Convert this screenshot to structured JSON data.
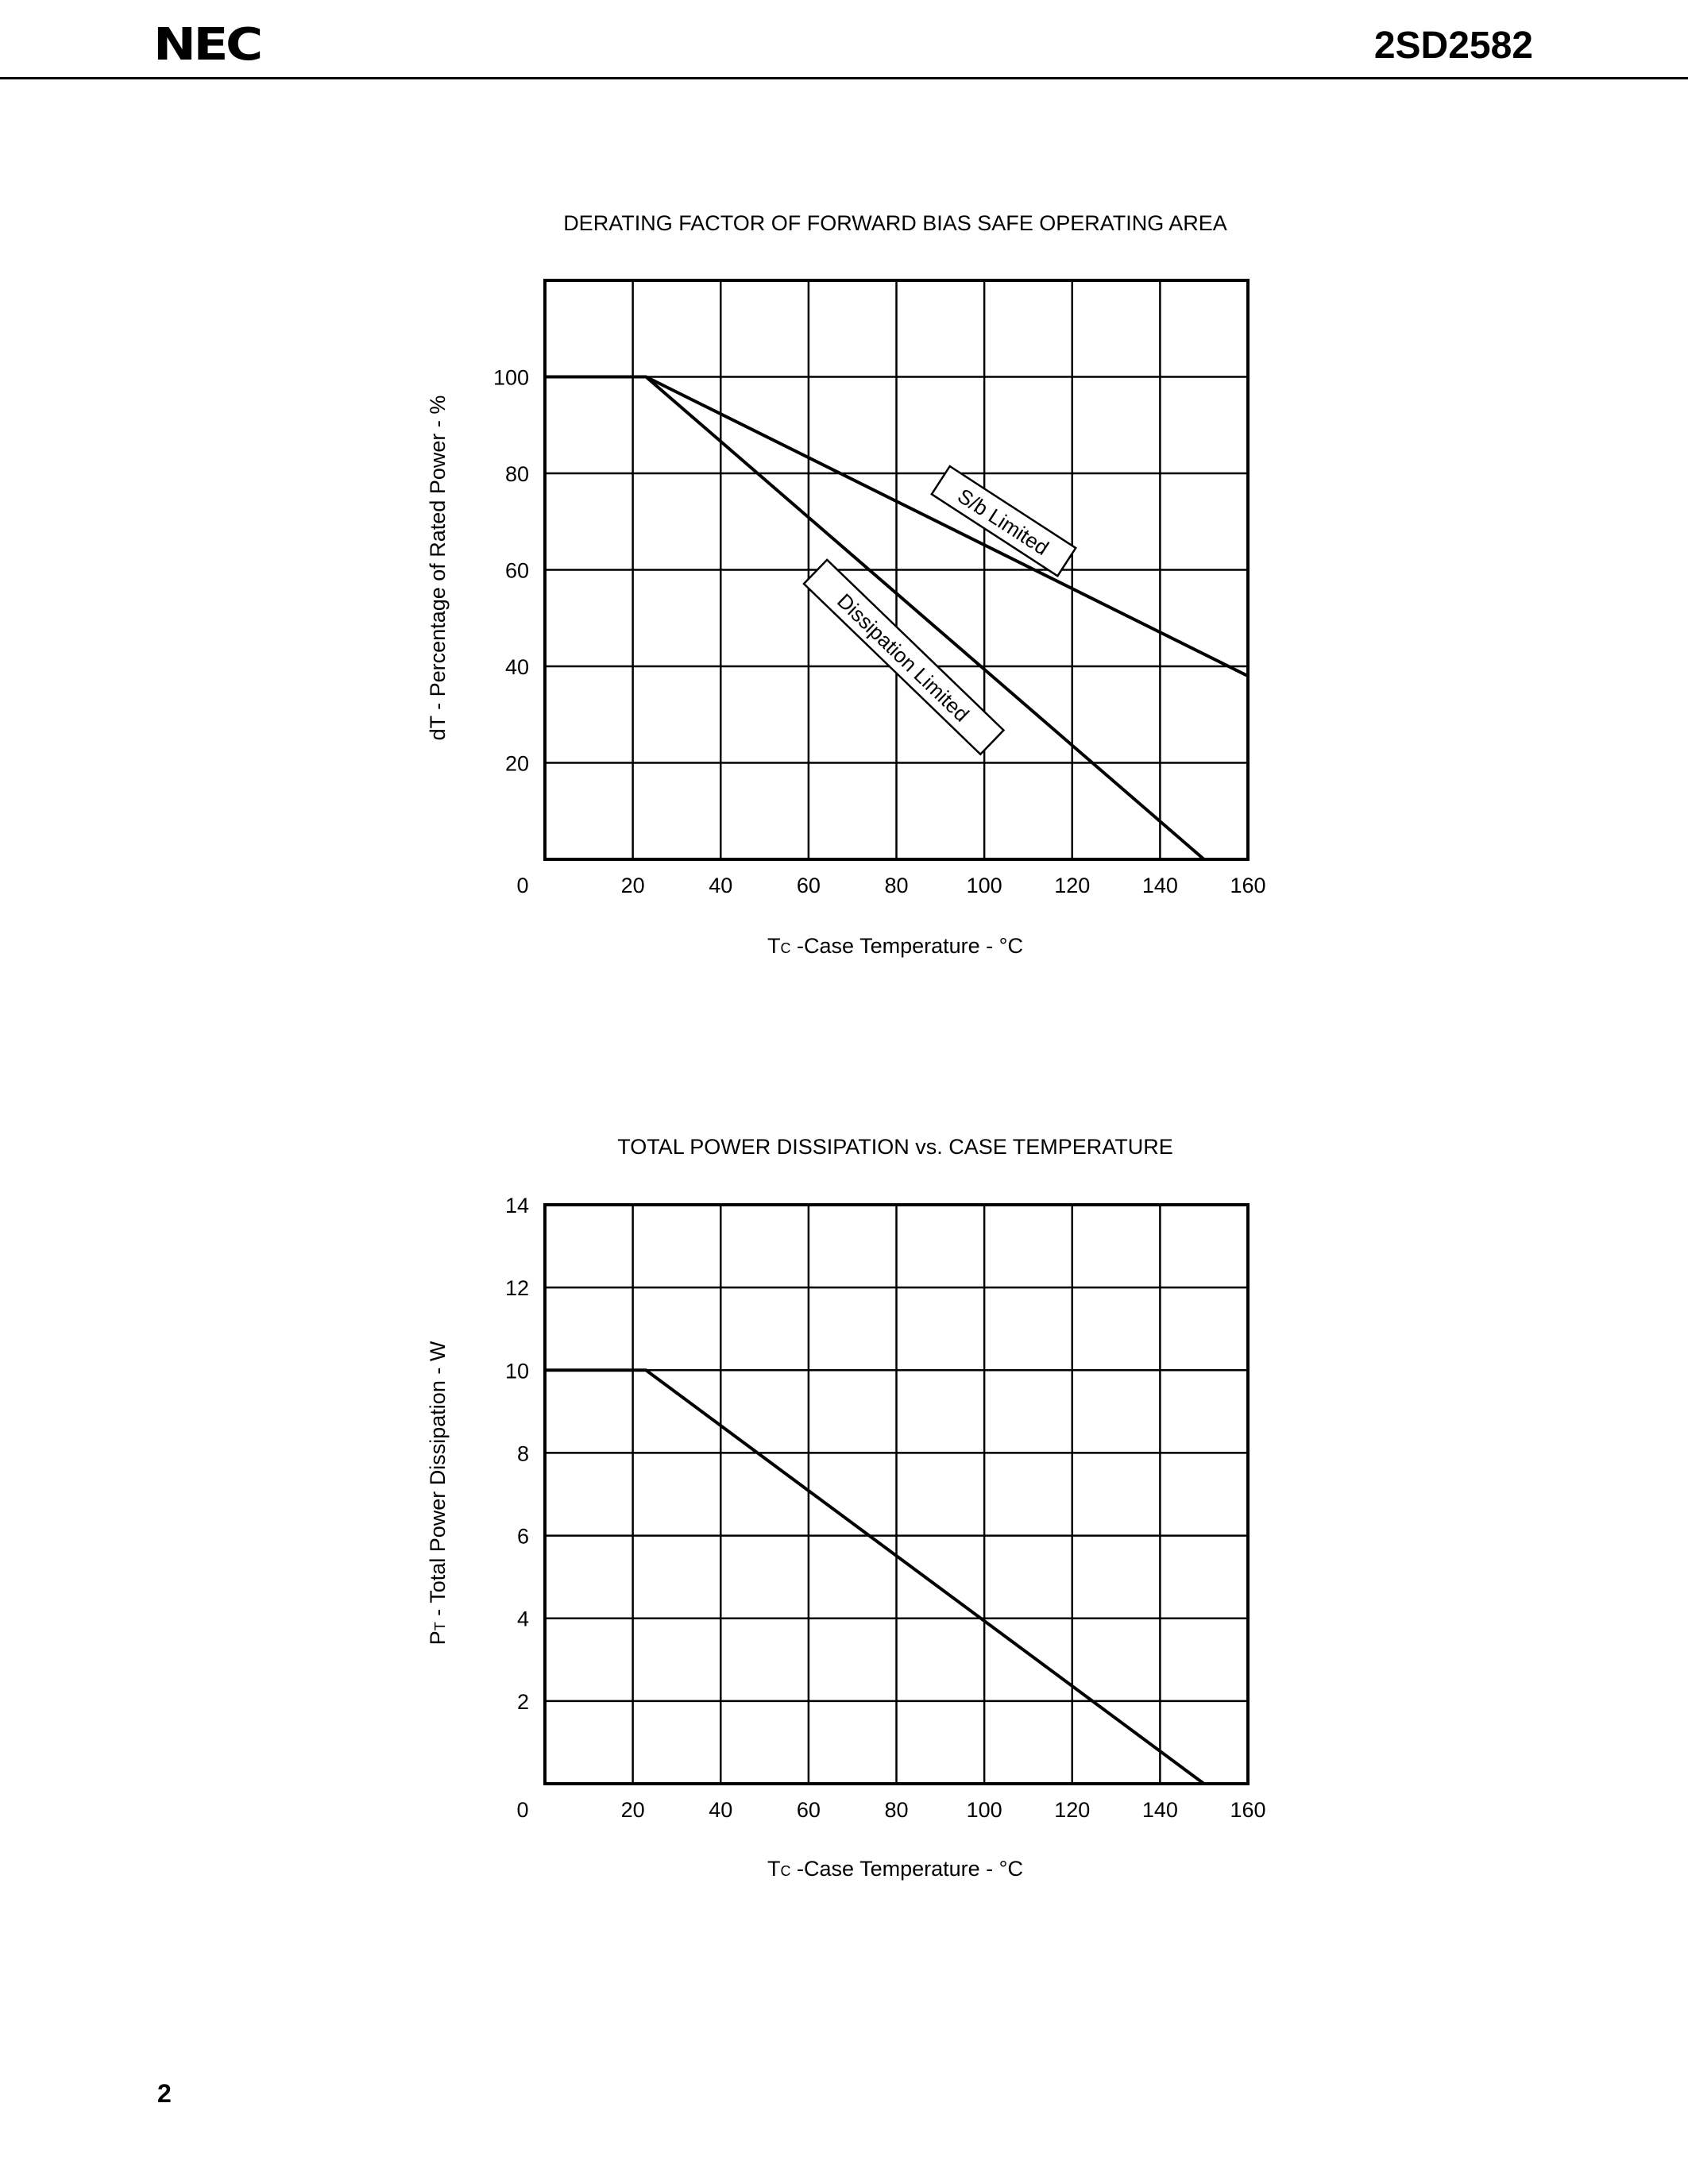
{
  "header": {
    "logo": "NEC",
    "part_number": "2SD2582"
  },
  "footer": {
    "page_number": "2"
  },
  "chart_data": [
    {
      "type": "line",
      "title": "DERATING FACTOR OF FORWARD BIAS SAFE OPERATING AREA",
      "xlabel_sym": "T",
      "xlabel_sub": "C",
      "xlabel_rest": " -Case Temperature - °C",
      "ylabel": "dT - Percentage of Rated Power - %",
      "xlim": [
        0,
        160
      ],
      "ylim": [
        0,
        120
      ],
      "x_ticks": [
        0,
        20,
        40,
        60,
        80,
        100,
        120,
        140,
        160
      ],
      "y_ticks": [
        20,
        40,
        60,
        80,
        100
      ],
      "y_tick_labels": [
        "20",
        "40",
        "60",
        "80",
        "100"
      ],
      "x_tick_labels": [
        "0",
        "20",
        "40",
        "60",
        "80",
        "100",
        "120",
        "140",
        "160"
      ],
      "grid": true,
      "series": [
        {
          "name": "S/b Limited",
          "x": [
            0,
            23,
            160
          ],
          "y": [
            100,
            100,
            38
          ]
        },
        {
          "name": "Dissipation Limited",
          "x": [
            0,
            23,
            150
          ],
          "y": [
            100,
            100,
            0
          ]
        }
      ]
    },
    {
      "type": "line",
      "title": "TOTAL POWER DISSIPATION vs. CASE TEMPERATURE",
      "xlabel_sym": "T",
      "xlabel_sub": "C",
      "xlabel_rest": " -Case Temperature - °C",
      "ylabel_sym": "P",
      "ylabel_sub": "T",
      "ylabel_rest": " - Total Power Dissipation - W",
      "xlim": [
        0,
        160
      ],
      "ylim": [
        0,
        14
      ],
      "x_ticks": [
        0,
        20,
        40,
        60,
        80,
        100,
        120,
        140,
        160
      ],
      "y_ticks": [
        2,
        4,
        6,
        8,
        10,
        12,
        14
      ],
      "y_tick_labels": [
        "2",
        "4",
        "6",
        "8",
        "10",
        "12",
        "14"
      ],
      "x_tick_labels": [
        "0",
        "20",
        "40",
        "60",
        "80",
        "100",
        "120",
        "140",
        "160"
      ],
      "grid": true,
      "series": [
        {
          "x": [
            0,
            23,
            150
          ],
          "y": [
            10,
            10,
            0
          ]
        }
      ]
    }
  ]
}
